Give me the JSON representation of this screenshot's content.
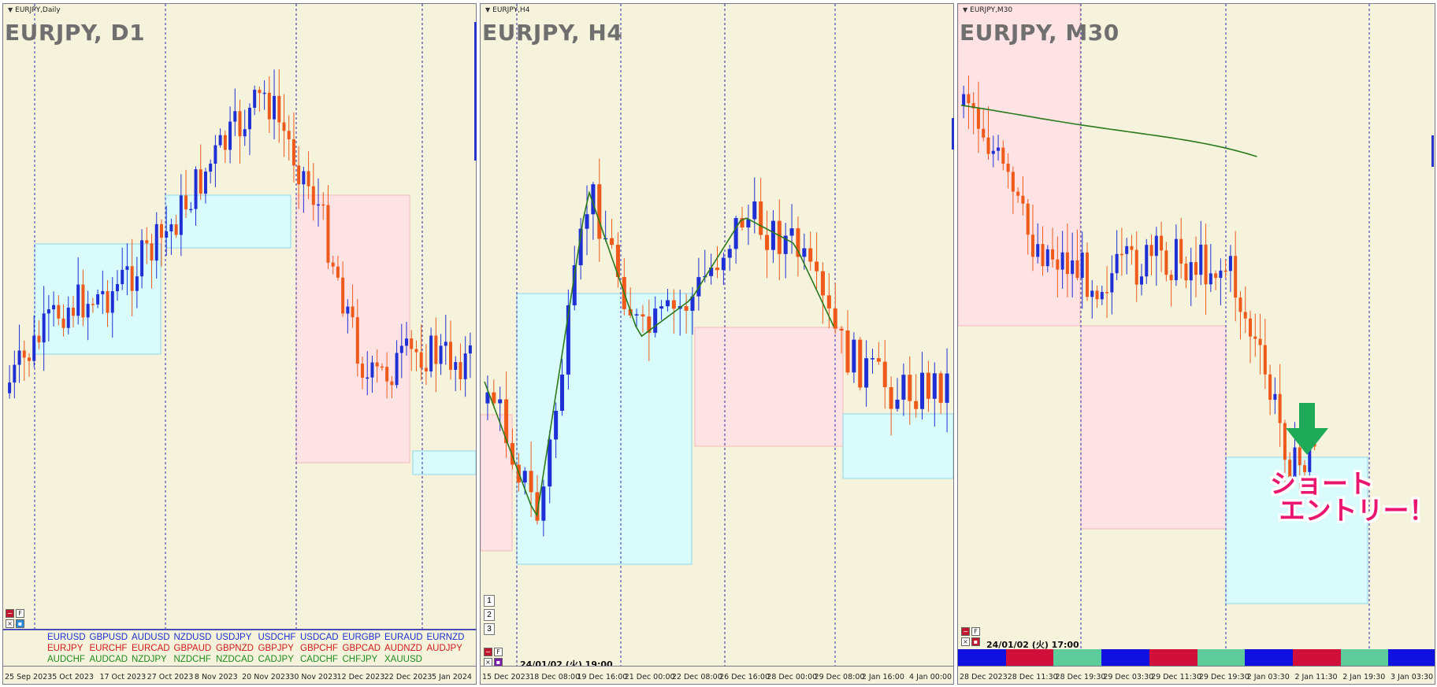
{
  "panes": [
    {
      "id": "d1",
      "window_title": "EURJPY,Daily",
      "chart_title": "EURJPY, D1",
      "x_ticks": [
        "25 Sep 2023",
        "5 Oct 2023",
        "17 Oct 2023",
        "27 Oct 2023",
        "8 Nov 2023",
        "20 Nov 2023",
        "30 Nov 2023",
        "12 Dec 2023",
        "22 Dec 2023",
        "5 Jan 2024"
      ]
    },
    {
      "id": "h4",
      "window_title": "EURJPY,H4",
      "chart_title": "EURJPY, H4",
      "x_ticks": [
        "15 Dec 2023",
        "18 Dec 08:00",
        "19 Dec 16:00",
        "21 Dec 00:00",
        "22 Dec 08:00",
        "26 Dec 16:00",
        "28 Dec 00:00",
        "29 Dec 08:00",
        "2 Jan 16:00",
        "4 Jan 00:00"
      ],
      "timeframe_buttons": [
        "1",
        "2",
        "3"
      ],
      "datetime": "24/01/02 (火) 19:00"
    },
    {
      "id": "m30",
      "window_title": "EURJPY,M30",
      "chart_title": "EURJPY, M30",
      "x_ticks": [
        "28 Dec 2023",
        "28 Dec 11:30",
        "28 Dec 19:30",
        "29 Dec 03:30",
        "29 Dec 11:30",
        "29 Dec 19:30",
        "2 Jan 03:30",
        "2 Jan 11:30",
        "2 Jan 19:30",
        "3 Jan 03:30"
      ],
      "datetime": "24/01/02 (火) 17:00",
      "annotation": "ショート\n エントリー！"
    }
  ],
  "symbols": [
    {
      "text": "EURUSD",
      "color": "#1a2fd0"
    },
    {
      "text": "GBPUSD",
      "color": "#1a2fd0"
    },
    {
      "text": "AUDUSD",
      "color": "#1a2fd0"
    },
    {
      "text": "NZDUSD",
      "color": "#1a2fd0"
    },
    {
      "text": "USDJPY",
      "color": "#1a2fd0"
    },
    {
      "text": "USDCHF",
      "color": "#1a2fd0"
    },
    {
      "text": "USDCAD",
      "color": "#1a2fd0"
    },
    {
      "text": "EURGBP",
      "color": "#1a2fd0"
    },
    {
      "text": "EURAUD",
      "color": "#1a2fd0"
    },
    {
      "text": "EURNZD",
      "color": "#1a2fd0"
    },
    {
      "text": "EURJPY",
      "color": "#d01a1a"
    },
    {
      "text": "EURCHF",
      "color": "#d01a1a"
    },
    {
      "text": "EURCAD",
      "color": "#d01a1a"
    },
    {
      "text": "GBPAUD",
      "color": "#d01a1a"
    },
    {
      "text": "GBPNZD",
      "color": "#d01a1a"
    },
    {
      "text": "GBPJPY",
      "color": "#d01a1a"
    },
    {
      "text": "GBPCHF",
      "color": "#d01a1a"
    },
    {
      "text": "GBPCAD",
      "color": "#d01a1a"
    },
    {
      "text": "AUDNZD",
      "color": "#d01a1a"
    },
    {
      "text": "AUDJPY",
      "color": "#d01a1a"
    },
    {
      "text": "AUDCHF",
      "color": "#1f8a1f"
    },
    {
      "text": "AUDCAD",
      "color": "#1f8a1f"
    },
    {
      "text": "NZDJPY",
      "color": "#1f8a1f"
    },
    {
      "text": "NZDCHF",
      "color": "#1f8a1f"
    },
    {
      "text": "NZDCAD",
      "color": "#1f8a1f"
    },
    {
      "text": "CADJPY",
      "color": "#1f8a1f"
    },
    {
      "text": "CADCHF",
      "color": "#1f8a1f"
    },
    {
      "text": "CHFJPY",
      "color": "#1f8a1f"
    },
    {
      "text": "XAUUSD",
      "color": "#1f8a1f"
    }
  ],
  "colors": {
    "bull": "#1f2fd6",
    "bear": "#ef5a1a",
    "ma": "#2a7a1a",
    "box_up": "#d9fbfb",
    "box_down": "#fde3e3",
    "pane_bg": "#f5f3dc",
    "grid": "#2a2ab0",
    "arrow": "#1faa5a",
    "status_bar": [
      "#1010e0",
      "#d0103a",
      "#5ccc9a",
      "#1010e0",
      "#d0103a",
      "#5ccc9a",
      "#1010e0",
      "#d0103a",
      "#5ccc9a",
      "#1010e0"
    ]
  },
  "chart_data": [
    {
      "type": "candlestick",
      "title": "EURJPY, D1",
      "x": [
        "25 Sep 2023",
        "5 Oct 2023",
        "17 Oct 2023",
        "27 Oct 2023",
        "8 Nov 2023",
        "20 Nov 2023",
        "30 Nov 2023",
        "12 Dec 2023",
        "22 Dec 2023",
        "5 Jan 2024"
      ],
      "close_trend": [
        0.62,
        0.48,
        0.45,
        0.35,
        0.2,
        0.08,
        0.28,
        0.62,
        0.56,
        0.58
      ],
      "zones": [
        {
          "kind": "up",
          "from": "5 Oct 2023",
          "to": "27 Oct 2023"
        },
        {
          "kind": "up",
          "from": "27 Oct 2023",
          "to": "20 Nov 2023"
        },
        {
          "kind": "down",
          "from": "30 Nov 2023",
          "to": "22 Dec 2023"
        },
        {
          "kind": "up",
          "from": "22 Dec 2023",
          "to": "5 Jan 2024"
        }
      ]
    },
    {
      "type": "candlestick",
      "title": "EURJPY, H4",
      "x": [
        "15 Dec 2023",
        "18 Dec 08:00",
        "19 Dec 16:00",
        "21 Dec 00:00",
        "22 Dec 08:00",
        "26 Dec 16:00",
        "28 Dec 00:00",
        "29 Dec 08:00",
        "2 Jan 16:00",
        "4 Jan 00:00"
      ],
      "close_trend": [
        0.6,
        0.85,
        0.25,
        0.52,
        0.45,
        0.3,
        0.35,
        0.55,
        0.62,
        0.6
      ],
      "moving_average": true,
      "zones": [
        {
          "kind": "down",
          "from": "15 Dec 2023",
          "to": "18 Dec 08:00"
        },
        {
          "kind": "up",
          "from": "18 Dec 08:00",
          "to": "22 Dec 08:00"
        },
        {
          "kind": "down",
          "from": "22 Dec 08:00",
          "to": "29 Dec 08:00"
        },
        {
          "kind": "up",
          "from": "29 Dec 08:00",
          "to": "4 Jan 00:00"
        }
      ]
    },
    {
      "type": "candlestick",
      "title": "EURJPY, M30",
      "x": [
        "28 Dec 2023",
        "28 Dec 11:30",
        "28 Dec 19:30",
        "29 Dec 03:30",
        "29 Dec 11:30",
        "29 Dec 19:30",
        "2 Jan 03:30",
        "2 Jan 11:30",
        "2 Jan 19:30",
        "3 Jan 03:30"
      ],
      "close_trend": [
        0.08,
        0.35,
        0.42,
        0.38,
        0.4,
        0.75,
        0.6,
        0.65
      ],
      "moving_average": true,
      "zones": [
        {
          "kind": "down",
          "from": "28 Dec 2023",
          "to": "28 Dec 19:30"
        },
        {
          "kind": "down",
          "from": "28 Dec 19:30",
          "to": "29 Dec 19:30"
        },
        {
          "kind": "up",
          "from": "29 Dec 19:30",
          "to": "2 Jan 19:30"
        }
      ]
    }
  ]
}
